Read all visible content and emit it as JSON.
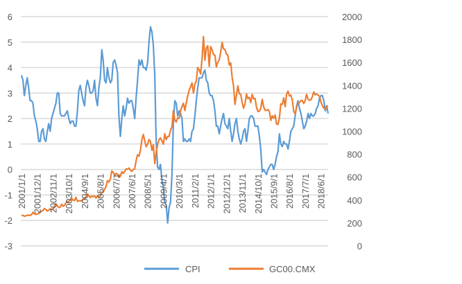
{
  "chart_data": {
    "type": "line",
    "title": "",
    "start_month": "2001/1",
    "frequency": "monthly",
    "x_tick_labels": [
      "2001/1/1",
      "2001/12/1",
      "2002/11/1",
      "2003/10/1",
      "2004/9/1",
      "2005/8/1",
      "2006/7/1",
      "2007/6/1",
      "2008/5/1",
      "2009/4/1",
      "2010/3/1",
      "2011/2/1",
      "2012/1/1",
      "2012/12/1",
      "2013/11/1",
      "2014/10/1",
      "2015/9/1",
      "2016/8/1",
      "2017/7/1",
      "2018/6/1"
    ],
    "x_tick_step_months": 11,
    "y_left": {
      "ylim": [
        -3,
        6
      ],
      "ticks": [
        "6",
        "5",
        "4",
        "3",
        "2",
        "1",
        "0",
        "-1",
        "-2",
        "-3"
      ]
    },
    "y_right": {
      "ylim": [
        0,
        2000
      ],
      "ticks": [
        "2000",
        "1800",
        "1600",
        "1400",
        "1200",
        "1000",
        "800",
        "600",
        "400",
        "200",
        "0"
      ]
    },
    "grid": true,
    "legend_position": "bottom",
    "series": [
      {
        "name": "CPI",
        "axis": "left",
        "color": "#5B9BD5",
        "values": [
          3.7,
          3.5,
          2.9,
          3.3,
          3.6,
          3.2,
          2.7,
          2.7,
          2.6,
          2.1,
          1.9,
          1.6,
          1.1,
          1.1,
          1.5,
          1.6,
          1.2,
          1.1,
          1.5,
          1.8,
          1.5,
          2.0,
          2.2,
          2.4,
          2.6,
          3.0,
          3.0,
          2.2,
          2.1,
          2.1,
          2.1,
          2.2,
          2.3,
          2.0,
          1.8,
          1.9,
          1.9,
          1.7,
          1.7,
          2.3,
          3.1,
          3.3,
          3.0,
          2.7,
          2.5,
          3.2,
          3.5,
          3.3,
          3.0,
          3.0,
          3.1,
          3.5,
          2.8,
          2.5,
          3.2,
          3.6,
          4.7,
          4.3,
          3.5,
          3.4,
          4.0,
          3.6,
          3.4,
          3.5,
          4.2,
          4.3,
          4.1,
          3.8,
          2.1,
          1.3,
          2.0,
          2.5,
          2.1,
          2.4,
          2.8,
          2.6,
          2.7,
          2.7,
          2.4,
          2.0,
          2.8,
          3.5,
          4.3,
          4.1,
          4.3,
          4.0,
          4.0,
          3.9,
          4.2,
          5.0,
          5.6,
          5.4,
          4.9,
          3.7,
          1.1,
          0.1,
          0.0,
          0.2,
          -0.4,
          -0.7,
          -1.3,
          -1.4,
          -2.1,
          -1.5,
          -1.3,
          -0.2,
          1.8,
          2.7,
          2.6,
          2.1,
          2.3,
          2.2,
          2.0,
          1.1,
          1.2,
          1.1,
          1.1,
          1.2,
          1.1,
          1.5,
          1.6,
          2.1,
          2.7,
          3.2,
          3.6,
          3.6,
          3.6,
          3.8,
          3.9,
          3.5,
          3.4,
          3.0,
          2.9,
          2.9,
          2.7,
          2.3,
          1.7,
          1.7,
          1.4,
          1.7,
          2.0,
          2.2,
          1.8,
          1.7,
          1.6,
          2.0,
          1.5,
          1.1,
          1.4,
          1.8,
          2.0,
          1.5,
          1.2,
          1.0,
          1.2,
          1.5,
          1.6,
          1.1,
          1.5,
          2.0,
          2.1,
          2.1,
          2.0,
          1.7,
          1.7,
          1.7,
          1.3,
          0.8,
          -0.1,
          0.0,
          -0.1,
          -0.2,
          0.0,
          0.1,
          0.2,
          0.2,
          0.0,
          0.2,
          0.5,
          0.7,
          1.4,
          1.0,
          0.9,
          1.1,
          1.0,
          1.0,
          0.8,
          1.1,
          1.5,
          1.6,
          1.7,
          2.1,
          2.5,
          2.7,
          2.4,
          2.2,
          1.9,
          1.6,
          1.7,
          1.9,
          2.2,
          2.0,
          2.2,
          2.1,
          2.1,
          2.2,
          2.4,
          2.5,
          2.8,
          2.9,
          2.9,
          2.7,
          2.3,
          2.5,
          2.2
        ]
      },
      {
        "name": "GC00.CMX",
        "axis": "right",
        "color": "#ED7D31",
        "values": [
          265,
          267,
          258,
          263,
          266,
          270,
          265,
          273,
          293,
          279,
          275,
          278,
          282,
          296,
          302,
          308,
          326,
          318,
          304,
          312,
          323,
          316,
          317,
          347,
          368,
          348,
          336,
          337,
          364,
          346,
          354,
          375,
          388,
          384,
          398,
          416,
          400,
          396,
          424,
          388,
          394,
          395,
          391,
          408,
          416,
          429,
          453,
          438,
          422,
          436,
          429,
          436,
          417,
          437,
          429,
          433,
          469,
          470,
          495,
          517,
          569,
          557,
          582,
          653,
          643,
          614,
          633,
          626,
          599,
          606,
          648,
          632,
          650,
          672,
          669,
          679,
          659,
          650,
          667,
          673,
          743,
          795,
          783,
          834,
          924,
          972,
          917,
          865,
          886,
          928,
          913,
          834,
          884,
          718,
          816,
          884,
          928,
          942,
          917,
          887,
          979,
          927,
          955,
          955,
          1008,
          1040,
          1180,
          1096,
          1081,
          1118,
          1114,
          1180,
          1214,
          1244,
          1181,
          1248,
          1308,
          1357,
          1386,
          1421,
          1333,
          1411,
          1439,
          1556,
          1536,
          1500,
          1628,
          1826,
          1620,
          1725,
          1746,
          1566,
          1739,
          1711,
          1669,
          1664,
          1561,
          1604,
          1622,
          1690,
          1776,
          1719,
          1714,
          1675,
          1663,
          1578,
          1596,
          1472,
          1393,
          1234,
          1313,
          1396,
          1327,
          1323,
          1250,
          1202,
          1240,
          1326,
          1284,
          1296,
          1250,
          1322,
          1282,
          1287,
          1210,
          1172,
          1175,
          1199,
          1278,
          1213,
          1183,
          1182,
          1190,
          1172,
          1095,
          1135,
          1115,
          1142,
          1064,
          1060,
          1118,
          1238,
          1234,
          1291,
          1215,
          1322,
          1350,
          1309,
          1315,
          1273,
          1173,
          1152,
          1211,
          1249,
          1249,
          1268,
          1268,
          1242,
          1269,
          1322,
          1280,
          1270,
          1275,
          1303,
          1343,
          1318,
          1325,
          1315,
          1305,
          1253,
          1224,
          1202,
          1192,
          1215,
          1222
        ]
      }
    ]
  }
}
